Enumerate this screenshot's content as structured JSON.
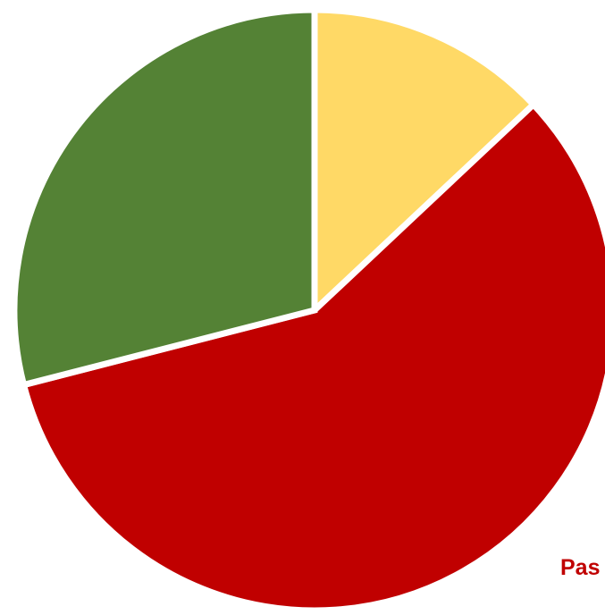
{
  "chart_data": {
    "type": "pie",
    "start_angle_deg": 0,
    "direction": "clockwise",
    "slices": [
      {
        "value": 13,
        "color": "#FFD966",
        "label": ""
      },
      {
        "value": 58,
        "color": "#C00000",
        "label": "Pas"
      },
      {
        "value": 29,
        "color": "#548235",
        "label": ""
      }
    ]
  }
}
